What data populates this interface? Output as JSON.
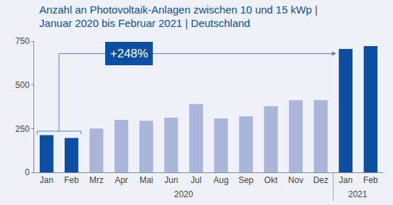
{
  "chart_data": {
    "type": "bar",
    "title": "Anzahl an Photovoltaik-Anlagen zwischen 10 und 15 kWp | Januar 2020 bis Februar 2021 | Deutschland",
    "categories": [
      "Jan",
      "Feb",
      "Mrz",
      "Apr",
      "Mai",
      "Jun",
      "Jul",
      "Aug",
      "Sep",
      "Okt",
      "Nov",
      "Dez",
      "Jan",
      "Feb"
    ],
    "years": [
      "2020",
      "2020",
      "2020",
      "2020",
      "2020",
      "2020",
      "2020",
      "2020",
      "2020",
      "2020",
      "2020",
      "2020",
      "2021",
      "2021"
    ],
    "values": [
      213,
      197,
      250,
      300,
      295,
      312,
      390,
      308,
      320,
      378,
      413,
      413,
      705,
      722
    ],
    "colors": [
      "#0b4ea2",
      "#0b4ea2",
      "#a9b5d9",
      "#a9b5d9",
      "#a9b5d9",
      "#a9b5d9",
      "#a9b5d9",
      "#a9b5d9",
      "#a9b5d9",
      "#a9b5d9",
      "#a9b5d9",
      "#a9b5d9",
      "#0b4ea2",
      "#0b4ea2"
    ],
    "ylim": [
      0,
      750
    ],
    "yticks": [
      0,
      250,
      500,
      750
    ],
    "grid": false,
    "annotations": [
      "+248%"
    ]
  }
}
